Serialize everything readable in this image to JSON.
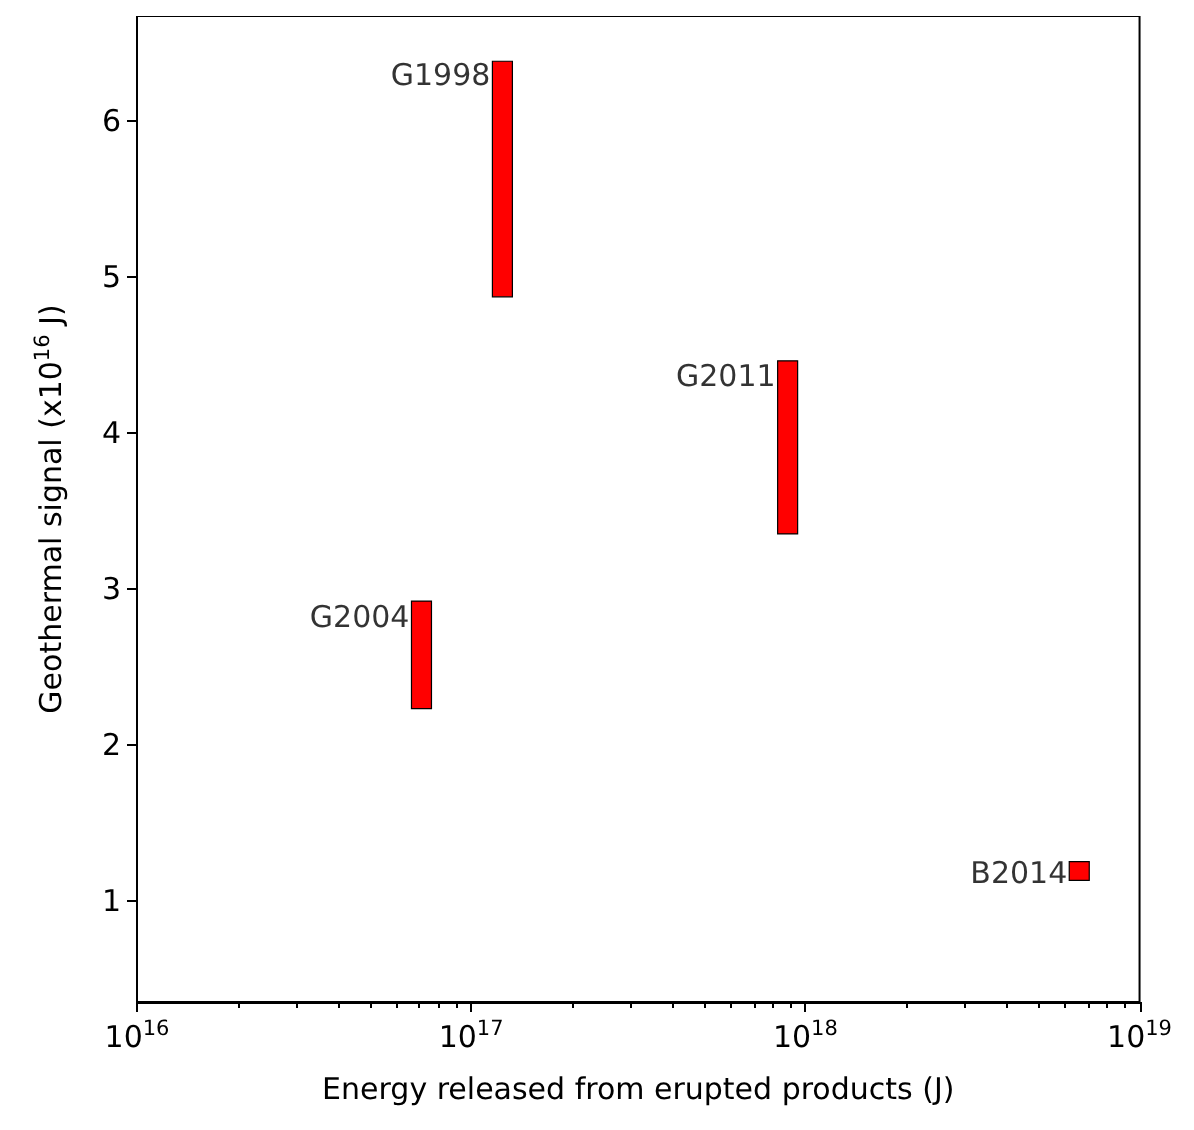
{
  "chart_data": {
    "type": "bar",
    "xlabel": "Energy released from erupted products (J)",
    "ylabel": "Geothermal signal (x10$^{16}$ J)",
    "x": [
      7.1e+16,
      1.24e+17,
      8.85e+17,
      6.6e+18
    ],
    "base": [
      2.23,
      4.87,
      3.35,
      1.13
    ],
    "values": [
      0.69,
      1.51,
      1.11,
      0.12
    ],
    "color": "#ff0000",
    "annotations": [
      {
        "text": "G1998",
        "x": 1.24e+17,
        "y": 6.29
      },
      {
        "text": "G2004",
        "x": 7.1e+16,
        "y": 2.82
      },
      {
        "text": "G2011",
        "x": 8.85e+17,
        "y": 4.36
      },
      {
        "text": "B2014",
        "x": 6.6e+18,
        "y": 1.18
      }
    ],
    "log": "x",
    "xlim": [
      1e+16,
      1e+19
    ],
    "xticks": [
      {
        "value": 1e+16,
        "label": "10$^{16}$"
      },
      {
        "value": 1e+17,
        "label": "10$^{17}$"
      },
      {
        "value": 1e+18,
        "label": "10$^{18}$"
      },
      {
        "value": 1e+19,
        "label": "10$^{19}$"
      }
    ],
    "ylim": [
      0.35,
      6.67
    ],
    "yticks": [
      1,
      2,
      3,
      4,
      5,
      6
    ]
  }
}
